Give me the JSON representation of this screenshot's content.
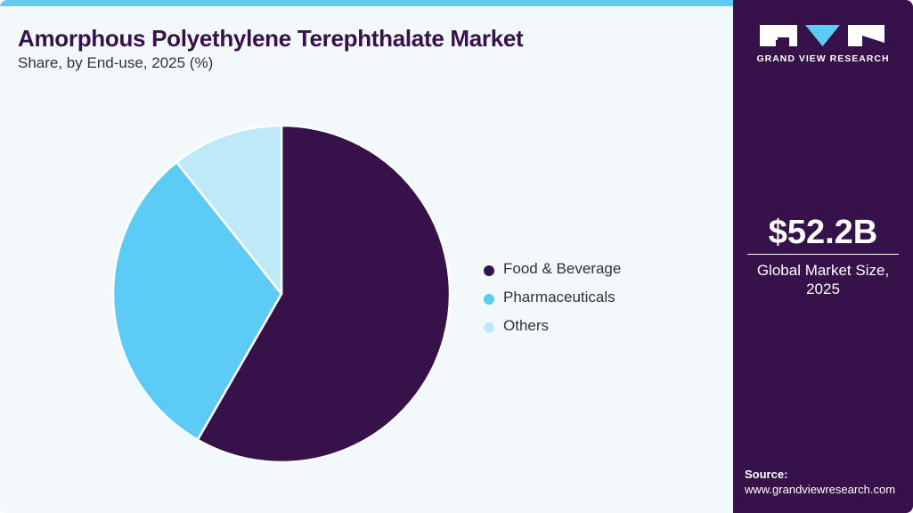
{
  "header": {
    "title": "Amorphous Polyethylene Terephthalate Market",
    "subtitle": "Share, by End-use, 2025 (%)"
  },
  "legend": {
    "items": [
      {
        "label": "Food & Beverage",
        "color": "#37124a"
      },
      {
        "label": "Pharmaceuticals",
        "color": "#5ccbf5"
      },
      {
        "label": "Others",
        "color": "#bde9f9"
      }
    ]
  },
  "sidebar": {
    "brand": "GRAND VIEW RESEARCH",
    "market_value": "$52.2B",
    "market_caption_line1": "Global Market Size,",
    "market_caption_line2": "2025",
    "source_label": "Source:",
    "source_url": "www.grandviewresearch.com"
  },
  "colors": {
    "accent": "#5ccbf5",
    "brand_dark": "#37124a",
    "background": "#f3f8fb"
  },
  "chart_data": {
    "type": "pie",
    "title": "Amorphous Polyethylene Terephthalate Market",
    "subtitle": "Share, by End-use, 2025 (%)",
    "categories": [
      "Food & Beverage",
      "Pharmaceuticals",
      "Others"
    ],
    "values": [
      58.3,
      31.0,
      10.7
    ],
    "colors": [
      "#37124a",
      "#5ccbf5",
      "#bde9f9"
    ],
    "start_angle": "12 o'clock, clockwise",
    "legend_position": "right"
  }
}
